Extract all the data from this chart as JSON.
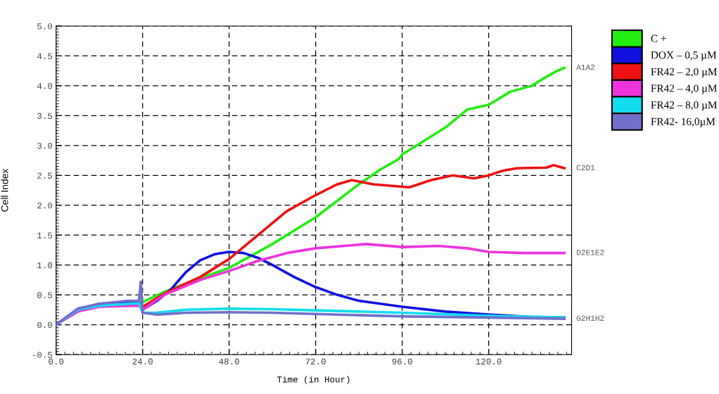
{
  "chart_data": {
    "type": "line",
    "xlabel": "Time (in Hour)",
    "ylabel": "Cell Index",
    "xlim": [
      0,
      143
    ],
    "ylim": [
      -0.5,
      5.0
    ],
    "xticks": [
      {
        "value": 0,
        "label": "0.0"
      },
      {
        "value": 24,
        "label": "24.0"
      },
      {
        "value": 48,
        "label": "48.0"
      },
      {
        "value": 72,
        "label": "72.0"
      },
      {
        "value": 96,
        "label": "96.0"
      },
      {
        "value": 120,
        "label": "120.0"
      }
    ],
    "yticks": [
      {
        "value": -0.5,
        "label": "-0.5"
      },
      {
        "value": 0,
        "label": "0.0"
      },
      {
        "value": 0.5,
        "label": "0.5"
      },
      {
        "value": 1,
        "label": "1.0"
      },
      {
        "value": 1.5,
        "label": "1.5"
      },
      {
        "value": 2,
        "label": "2.0"
      },
      {
        "value": 2.5,
        "label": "2.5"
      },
      {
        "value": 3,
        "label": "3.0"
      },
      {
        "value": 3.5,
        "label": "3.5"
      },
      {
        "value": 4,
        "label": "4.0"
      },
      {
        "value": 4.5,
        "label": "4.5"
      },
      {
        "value": 5,
        "label": "5.0"
      }
    ],
    "grid": true,
    "legend": "top right",
    "line_style": "solid",
    "marker": "none",
    "series": [
      {
        "name": "C +",
        "color": "#22ee11",
        "x": [
          24,
          30,
          40,
          48,
          60,
          72,
          84,
          90,
          95,
          96,
          100,
          108,
          114,
          120,
          126,
          132,
          136,
          139,
          141
        ],
        "values": [
          0.38,
          0.55,
          0.78,
          0.95,
          1.35,
          1.8,
          2.35,
          2.6,
          2.77,
          2.85,
          3.0,
          3.3,
          3.6,
          3.68,
          3.9,
          4.0,
          4.15,
          4.25,
          4.3
        ]
      },
      {
        "name": "DOX – 0,5 µM",
        "color": "#1010e0",
        "x": [
          0,
          6,
          12,
          23,
          24,
          28,
          32,
          36,
          40,
          44,
          48,
          52,
          56,
          60,
          66,
          72,
          78,
          84,
          96,
          108,
          120,
          132,
          141
        ],
        "values": [
          0,
          0.25,
          0.35,
          0.38,
          0.25,
          0.4,
          0.6,
          0.88,
          1.08,
          1.18,
          1.22,
          1.2,
          1.12,
          1.0,
          0.8,
          0.63,
          0.5,
          0.4,
          0.3,
          0.22,
          0.17,
          0.13,
          0.12
        ]
      },
      {
        "name": "FR42 – 2,0 µM",
        "color": "#ee1111",
        "x": [
          24,
          30,
          40,
          48,
          56,
          64,
          72,
          78,
          82,
          88,
          94,
          98,
          104,
          110,
          116,
          120,
          124,
          128,
          136,
          138,
          141
        ],
        "values": [
          0.3,
          0.52,
          0.8,
          1.1,
          1.5,
          1.9,
          2.17,
          2.35,
          2.42,
          2.35,
          2.32,
          2.3,
          2.42,
          2.5,
          2.45,
          2.5,
          2.58,
          2.62,
          2.63,
          2.67,
          2.62
        ]
      },
      {
        "name": "FR42 – 4,0 µM",
        "color": "#ee33dd",
        "x": [
          0,
          6,
          12,
          23,
          24,
          30,
          40,
          48,
          56,
          64,
          72,
          86,
          96,
          106,
          114,
          120,
          130,
          141
        ],
        "values": [
          0,
          0.22,
          0.3,
          0.32,
          0.25,
          0.5,
          0.75,
          0.9,
          1.07,
          1.2,
          1.28,
          1.35,
          1.3,
          1.32,
          1.28,
          1.22,
          1.2,
          1.2
        ]
      },
      {
        "name": "FR42 – 8,0 µM",
        "color": "#11ddee",
        "x": [
          0,
          6,
          12,
          23,
          24,
          28,
          36,
          48,
          60,
          72,
          96,
          120,
          141
        ],
        "values": [
          0,
          0.25,
          0.32,
          0.36,
          0.2,
          0.2,
          0.25,
          0.27,
          0.26,
          0.24,
          0.2,
          0.15,
          0.12
        ]
      },
      {
        "name": "FR42- 16,0µM",
        "color": "#7070cc",
        "x": [
          0,
          6,
          12,
          20,
          23,
          23.5,
          24,
          28,
          36,
          48,
          60,
          72,
          96,
          120,
          141
        ],
        "values": [
          0,
          0.27,
          0.35,
          0.4,
          0.4,
          0.72,
          0.2,
          0.17,
          0.2,
          0.21,
          0.2,
          0.18,
          0.14,
          0.12,
          0.1
        ]
      }
    ],
    "annotations": [
      "A1A2",
      "C2D1",
      "D2E1E2",
      "G2H1H2"
    ]
  }
}
